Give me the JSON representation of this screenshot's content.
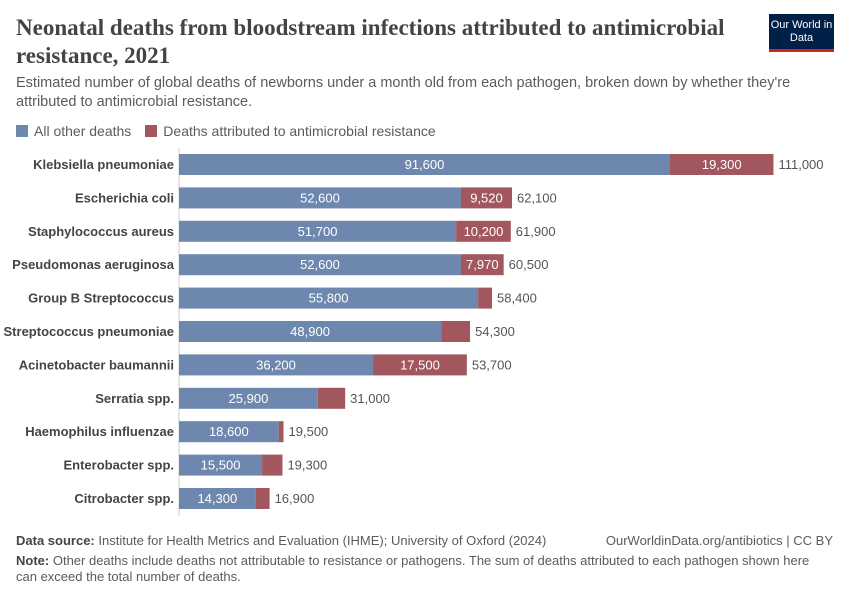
{
  "header": {
    "title": "Neonatal deaths from bloodstream infections attributed to antimicrobial resistance, 2021",
    "subtitle": "Estimated number of global deaths of newborns under a month old from each pathogen, broken down by whether they're attributed to antimicrobial resistance.",
    "logo": "Our World in Data"
  },
  "chart_data": {
    "type": "bar",
    "orientation": "horizontal",
    "stacked": true,
    "legend_position": "top-left",
    "grid": false,
    "categories": [
      "Klebsiella pneumoniae",
      "Escherichia coli",
      "Staphylococcus aureus",
      "Pseudomonas aeruginosa",
      "Group B Streptococcus",
      "Streptococcus pneumoniae",
      "Acinetobacter baumannii",
      "Serratia spp.",
      "Haemophilus influenzae",
      "Enterobacter spp.",
      "Citrobacter spp."
    ],
    "series": [
      {
        "name": "All other deaths",
        "color": "#6d87ae",
        "values": [
          91600,
          52600,
          51700,
          52600,
          55800,
          48900,
          36200,
          25900,
          18600,
          15500,
          14300
        ]
      },
      {
        "name": "Deaths attributed to antimicrobial resistance",
        "color": "#a2575e",
        "values": [
          19300,
          9520,
          10200,
          7970,
          2600,
          5400,
          17500,
          5100,
          900,
          3800,
          2600
        ]
      }
    ],
    "totals": [
      111000,
      62100,
      61900,
      60500,
      58400,
      54300,
      53700,
      31000,
      19500,
      19300,
      16900
    ],
    "total_labels": [
      "111,000",
      "62,100",
      "61,900",
      "60,500",
      "58,400",
      "54,300",
      "53,700",
      "31,000",
      "19,500",
      "19,300",
      "16,900"
    ],
    "segment_labels": [
      [
        "91,600",
        "19,300"
      ],
      [
        "52,600",
        "9,520"
      ],
      [
        "51,700",
        "10,200"
      ],
      [
        "52,600",
        "7,970"
      ],
      [
        "55,800",
        ""
      ],
      [
        "48,900",
        ""
      ],
      [
        "36,200",
        "17,500"
      ],
      [
        "25,900",
        ""
      ],
      [
        "18,600",
        ""
      ],
      [
        "15,500",
        ""
      ],
      [
        "14,300",
        ""
      ]
    ],
    "xlim": [
      0,
      111000
    ]
  },
  "footer": {
    "source_label": "Data source:",
    "source": "Institute for Health Metrics and Evaluation (IHME); University of Oxford (2024)",
    "url": "OurWorldinData.org/antibiotics | CC BY",
    "note_label": "Note:",
    "note": "Other deaths include deaths not attributable to resistance or pathogens. The sum of deaths attributed to each pathogen shown here can exceed the total number of deaths."
  }
}
